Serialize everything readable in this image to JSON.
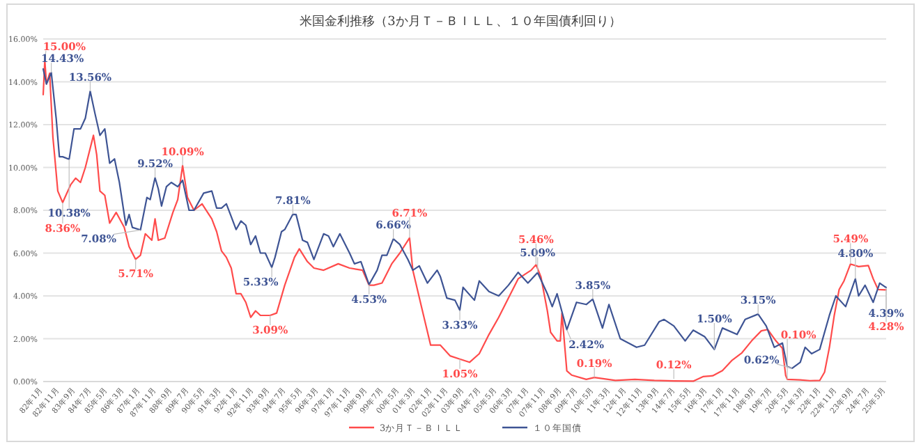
{
  "chart_data": {
    "type": "line",
    "title": "米国金利推移（3か月Ｔ－ＢＩＬＬ、１０年国債利回り）",
    "grid": "y",
    "legend": "bottom",
    "line_style": "solid",
    "marker": "none",
    "xlim": [
      "1982-01",
      "2025-05"
    ],
    "ylim": [
      0,
      16
    ],
    "yticks": [
      {
        "value": 0,
        "label": "0.00%"
      },
      {
        "value": 2,
        "label": "2.00%"
      },
      {
        "value": 4,
        "label": "4.00%"
      },
      {
        "value": 6,
        "label": "6.00%"
      },
      {
        "value": 8,
        "label": "8.00%"
      },
      {
        "value": 10,
        "label": "10.00%"
      },
      {
        "value": 12,
        "label": "12.00%"
      },
      {
        "value": 14,
        "label": "14.00%"
      },
      {
        "value": 16,
        "label": "16.00%"
      }
    ],
    "xticks": [
      {
        "value": "1982-01",
        "label": "82年1月"
      },
      {
        "value": "1982-11",
        "label": "82年11月"
      },
      {
        "value": "1983-09",
        "label": "83年9月"
      },
      {
        "value": "1984-07",
        "label": "84年7月"
      },
      {
        "value": "1985-05",
        "label": "85年5月"
      },
      {
        "value": "1986-03",
        "label": "86年3月"
      },
      {
        "value": "1987-01",
        "label": "87年1月"
      },
      {
        "value": "1987-11",
        "label": "87年11月"
      },
      {
        "value": "1988-09",
        "label": "88年9月"
      },
      {
        "value": "1989-07",
        "label": "89年7月"
      },
      {
        "value": "1990-05",
        "label": "90年5月"
      },
      {
        "value": "1991-03",
        "label": "91年3月"
      },
      {
        "value": "1992-01",
        "label": "92年1月"
      },
      {
        "value": "1992-11",
        "label": "92年11月"
      },
      {
        "value": "1993-09",
        "label": "93年9月"
      },
      {
        "value": "1994-07",
        "label": "94年7月"
      },
      {
        "value": "1995-05",
        "label": "95年5月"
      },
      {
        "value": "1996-03",
        "label": "96年3月"
      },
      {
        "value": "1997-01",
        "label": "97年1月"
      },
      {
        "value": "1997-11",
        "label": "97年11月"
      },
      {
        "value": "1998-09",
        "label": "98年9月"
      },
      {
        "value": "1999-07",
        "label": "99年7月"
      },
      {
        "value": "2000-05",
        "label": "00年5月"
      },
      {
        "value": "2001-03",
        "label": "01年3月"
      },
      {
        "value": "2002-01",
        "label": "02年1月"
      },
      {
        "value": "2002-11",
        "label": "02年11月"
      },
      {
        "value": "2003-09",
        "label": "03年9月"
      },
      {
        "value": "2004-07",
        "label": "04年7月"
      },
      {
        "value": "2005-05",
        "label": "05年5月"
      },
      {
        "value": "2006-03",
        "label": "06年3月"
      },
      {
        "value": "2007-01",
        "label": "07年1月"
      },
      {
        "value": "2007-11",
        "label": "07年11月"
      },
      {
        "value": "2008-09",
        "label": "08年9月"
      },
      {
        "value": "2009-07",
        "label": "09年7月"
      },
      {
        "value": "2010-05",
        "label": "10年5月"
      },
      {
        "value": "2011-03",
        "label": "11年3月"
      },
      {
        "value": "2012-01",
        "label": "12年1月"
      },
      {
        "value": "2012-11",
        "label": "12年11月"
      },
      {
        "value": "2013-09",
        "label": "13年9月"
      },
      {
        "value": "2014-07",
        "label": "14年7月"
      },
      {
        "value": "2015-05",
        "label": "15年5月"
      },
      {
        "value": "2016-03",
        "label": "16年3月"
      },
      {
        "value": "2017-01",
        "label": "17年1月"
      },
      {
        "value": "2017-11",
        "label": "17年11月"
      },
      {
        "value": "2018-09",
        "label": "18年9月"
      },
      {
        "value": "2019-07",
        "label": "19年7月"
      },
      {
        "value": "2020-05",
        "label": "20年5月"
      },
      {
        "value": "2021-03",
        "label": "21年3月"
      },
      {
        "value": "2022-01",
        "label": "22年1月"
      },
      {
        "value": "2022-11",
        "label": "22年11月"
      },
      {
        "value": "2023-09",
        "label": "23年9月"
      },
      {
        "value": "2024-07",
        "label": "24年7月"
      },
      {
        "value": "2025-05",
        "label": "25年5月"
      }
    ],
    "series": [
      {
        "name": "3か月Ｔ－ＢＩＬＬ",
        "color": "#ff4b4b",
        "x": [
          "1982-01",
          "1982-02",
          "1982-03",
          "1982-05",
          "1982-07",
          "1982-08",
          "1982-10",
          "1983-01",
          "1983-03",
          "1983-06",
          "1983-09",
          "1983-12",
          "1984-03",
          "1984-08",
          "1984-10",
          "1984-12",
          "1985-03",
          "1985-06",
          "1985-10",
          "1986-03",
          "1986-06",
          "1986-10",
          "1987-01",
          "1987-04",
          "1987-08",
          "1987-10",
          "1987-12",
          "1988-04",
          "1988-09",
          "1988-12",
          "1989-03",
          "1989-06",
          "1989-10",
          "1990-03",
          "1990-09",
          "1990-12",
          "1991-03",
          "1991-06",
          "1991-09",
          "1991-12",
          "1992-03",
          "1992-06",
          "1992-09",
          "1992-12",
          "1993-03",
          "1993-09",
          "1994-01",
          "1994-06",
          "1994-12",
          "1995-03",
          "1995-08",
          "1995-12",
          "1996-06",
          "1997-03",
          "1997-10",
          "1998-06",
          "1998-10",
          "1999-01",
          "1999-06",
          "1999-12",
          "2000-05",
          "2000-11",
          "2001-01",
          "2001-06",
          "2001-12",
          "2002-06",
          "2002-12",
          "2003-06",
          "2003-12",
          "2004-06",
          "2004-12",
          "2005-06",
          "2005-12",
          "2006-06",
          "2006-12",
          "2007-02",
          "2007-05",
          "2007-08",
          "2007-12",
          "2008-02",
          "2008-06",
          "2008-08",
          "2008-09",
          "2008-12",
          "2009-03",
          "2009-12",
          "2010-05",
          "2011-06",
          "2012-06",
          "2013-06",
          "2014-06",
          "2015-06",
          "2015-12",
          "2016-06",
          "2016-12",
          "2017-06",
          "2017-12",
          "2018-06",
          "2018-12",
          "2019-04",
          "2019-09",
          "2020-01",
          "2020-03",
          "2020-04",
          "2020-12",
          "2021-06",
          "2021-12",
          "2022-03",
          "2022-06",
          "2022-09",
          "2022-12",
          "2023-03",
          "2023-07",
          "2023-12",
          "2024-06",
          "2024-09",
          "2024-12",
          "2025-05"
        ],
        "values": [
          13.4,
          15.0,
          13.9,
          14.4,
          11.4,
          10.6,
          8.9,
          8.36,
          8.7,
          9.2,
          9.5,
          9.3,
          10.0,
          11.5,
          10.6,
          8.9,
          8.7,
          7.4,
          7.9,
          7.2,
          6.3,
          5.71,
          5.9,
          6.9,
          6.6,
          7.6,
          6.6,
          6.7,
          7.9,
          8.5,
          10.09,
          8.6,
          8.0,
          8.3,
          7.6,
          7.0,
          6.1,
          5.8,
          5.3,
          4.1,
          4.1,
          3.7,
          3.0,
          3.3,
          3.09,
          3.09,
          3.2,
          4.5,
          5.8,
          6.2,
          5.6,
          5.3,
          5.2,
          5.5,
          5.3,
          5.2,
          4.5,
          4.5,
          4.6,
          5.5,
          6.0,
          6.71,
          5.2,
          3.6,
          1.7,
          1.7,
          1.2,
          1.05,
          0.9,
          1.3,
          2.2,
          3.0,
          3.9,
          4.8,
          5.1,
          5.2,
          5.46,
          4.9,
          3.3,
          2.3,
          1.9,
          1.9,
          3.2,
          0.5,
          0.3,
          0.1,
          0.19,
          0.05,
          0.1,
          0.05,
          0.03,
          0.02,
          0.23,
          0.27,
          0.51,
          1.0,
          1.34,
          1.9,
          2.37,
          2.43,
          1.9,
          1.55,
          0.29,
          0.1,
          0.08,
          0.04,
          0.05,
          0.44,
          1.6,
          3.1,
          4.3,
          4.7,
          5.49,
          5.37,
          5.42,
          4.8,
          4.3,
          4.28
        ]
      },
      {
        "name": "１０年国債",
        "color": "#3e5494",
        "x": [
          "1982-01",
          "1982-03",
          "1982-06",
          "1982-09",
          "1982-11",
          "1983-01",
          "1983-05",
          "1983-08",
          "1983-12",
          "1984-03",
          "1984-06",
          "1984-09",
          "1984-12",
          "1985-03",
          "1985-06",
          "1985-09",
          "1985-12",
          "1986-04",
          "1986-06",
          "1986-08",
          "1987-01",
          "1987-05",
          "1987-07",
          "1987-10",
          "1987-12",
          "1988-02",
          "1988-05",
          "1988-08",
          "1988-12",
          "1989-03",
          "1989-07",
          "1989-10",
          "1990-04",
          "1990-09",
          "1990-12",
          "1991-03",
          "1991-06",
          "1991-09",
          "1991-12",
          "1992-03",
          "1992-06",
          "1992-09",
          "1992-12",
          "1993-03",
          "1993-06",
          "1993-10",
          "1993-12",
          "1994-04",
          "1994-06",
          "1994-11",
          "1995-01",
          "1995-05",
          "1995-08",
          "1995-12",
          "1996-06",
          "1996-09",
          "1996-12",
          "1997-04",
          "1997-10",
          "1998-01",
          "1998-05",
          "1998-10",
          "1999-03",
          "1999-06",
          "1999-09",
          "2000-01",
          "2000-05",
          "2000-10",
          "2001-01",
          "2001-05",
          "2001-10",
          "2002-04",
          "2002-06",
          "2002-10",
          "2003-03",
          "2003-06",
          "2003-08",
          "2004-03",
          "2004-06",
          "2004-12",
          "2005-06",
          "2005-12",
          "2006-06",
          "2006-12",
          "2007-06",
          "2007-12",
          "2008-03",
          "2008-06",
          "2008-12",
          "2009-06",
          "2009-12",
          "2010-04",
          "2010-10",
          "2011-02",
          "2011-09",
          "2012-07",
          "2012-12",
          "2013-09",
          "2013-12",
          "2014-06",
          "2015-01",
          "2015-06",
          "2016-01",
          "2016-07",
          "2016-12",
          "2017-09",
          "2018-02",
          "2018-10",
          "2019-03",
          "2019-08",
          "2020-01",
          "2020-04",
          "2020-07",
          "2020-12",
          "2021-03",
          "2021-07",
          "2021-12",
          "2022-06",
          "2022-10",
          "2023-04",
          "2023-10",
          "2023-12",
          "2024-04",
          "2024-09",
          "2025-01",
          "2025-05"
        ],
        "values": [
          14.6,
          13.9,
          14.43,
          12.3,
          10.5,
          10.5,
          10.38,
          11.8,
          11.8,
          12.3,
          13.56,
          12.5,
          11.5,
          11.8,
          10.2,
          10.4,
          9.3,
          7.3,
          7.8,
          7.2,
          7.08,
          8.6,
          8.5,
          9.52,
          9.0,
          8.2,
          9.1,
          9.3,
          9.1,
          9.4,
          8.0,
          8.0,
          8.8,
          8.9,
          8.1,
          8.1,
          8.3,
          7.7,
          7.1,
          7.5,
          7.3,
          6.4,
          6.8,
          6.0,
          6.0,
          5.33,
          5.8,
          7.0,
          7.1,
          7.81,
          7.8,
          6.6,
          6.5,
          5.7,
          6.9,
          6.8,
          6.3,
          6.9,
          6.0,
          5.5,
          5.6,
          4.53,
          5.2,
          5.9,
          5.9,
          6.66,
          6.4,
          5.7,
          5.2,
          5.4,
          4.6,
          5.2,
          4.9,
          3.9,
          3.8,
          3.33,
          4.4,
          3.8,
          4.7,
          4.2,
          4.0,
          4.5,
          5.1,
          4.6,
          5.09,
          4.1,
          3.5,
          4.1,
          2.42,
          3.7,
          3.6,
          3.85,
          2.5,
          3.6,
          2.0,
          1.6,
          1.7,
          2.8,
          2.9,
          2.6,
          1.9,
          2.4,
          2.1,
          1.5,
          2.5,
          2.2,
          2.9,
          3.15,
          2.6,
          1.6,
          1.8,
          0.7,
          0.62,
          0.9,
          1.6,
          1.3,
          1.5,
          3.1,
          4.0,
          3.5,
          4.8,
          4.0,
          4.5,
          3.7,
          4.6,
          4.39
        ]
      }
    ],
    "annotations": [
      {
        "text": "15.00%",
        "x": "1982-02",
        "y": 15.0
      },
      {
        "text": "14.43%",
        "x": "1982-06",
        "y": 14.43
      },
      {
        "text": "13.56%",
        "x": "1984-06",
        "y": 13.56
      },
      {
        "text": "10.38%",
        "x": "1983-05",
        "y": 10.38
      },
      {
        "text": "8.36%",
        "x": "1983-01",
        "y": 8.36
      },
      {
        "text": "9.52%",
        "x": "1987-10",
        "y": 9.52
      },
      {
        "text": "7.08%",
        "x": "1987-01",
        "y": 7.08
      },
      {
        "text": "5.71%",
        "x": "1986-10",
        "y": 5.71
      },
      {
        "text": "10.09%",
        "x": "1989-03",
        "y": 10.09
      },
      {
        "text": "3.09%",
        "x": "1993-09",
        "y": 3.09
      },
      {
        "text": "7.81%",
        "x": "1994-11",
        "y": 7.81
      },
      {
        "text": "5.33%",
        "x": "1993-10",
        "y": 5.33
      },
      {
        "text": "6.66%",
        "x": "2000-01",
        "y": 6.66
      },
      {
        "text": "4.53%",
        "x": "1998-10",
        "y": 4.53
      },
      {
        "text": "6.71%",
        "x": "2000-11",
        "y": 6.71
      },
      {
        "text": "3.33%",
        "x": "2003-06",
        "y": 3.33
      },
      {
        "text": "1.05%",
        "x": "2003-06",
        "y": 1.05
      },
      {
        "text": "5.09%",
        "x": "2007-06",
        "y": 5.09
      },
      {
        "text": "5.46%",
        "x": "2007-05",
        "y": 5.46
      },
      {
        "text": "3.85%",
        "x": "2010-04",
        "y": 3.85
      },
      {
        "text": "2.42%",
        "x": "2008-12",
        "y": 2.42
      },
      {
        "text": "0.19%",
        "x": "2010-05",
        "y": 0.19
      },
      {
        "text": "0.12%",
        "x": "2014-06",
        "y": 0.12
      },
      {
        "text": "1.50%",
        "x": "2016-07",
        "y": 1.5
      },
      {
        "text": "3.15%",
        "x": "2018-10",
        "y": 3.15
      },
      {
        "text": "0.62%",
        "x": "2020-07",
        "y": 0.62
      },
      {
        "text": "0.10%",
        "x": "2020-04",
        "y": 0.1
      },
      {
        "text": "4.80%",
        "x": "2023-10",
        "y": 4.8
      },
      {
        "text": "5.49%",
        "x": "2023-07",
        "y": 5.49
      },
      {
        "text": "4.39%",
        "x": "2025-05",
        "y": 4.39
      },
      {
        "text": "4.28%",
        "x": "2025-05",
        "y": 4.28
      }
    ]
  }
}
